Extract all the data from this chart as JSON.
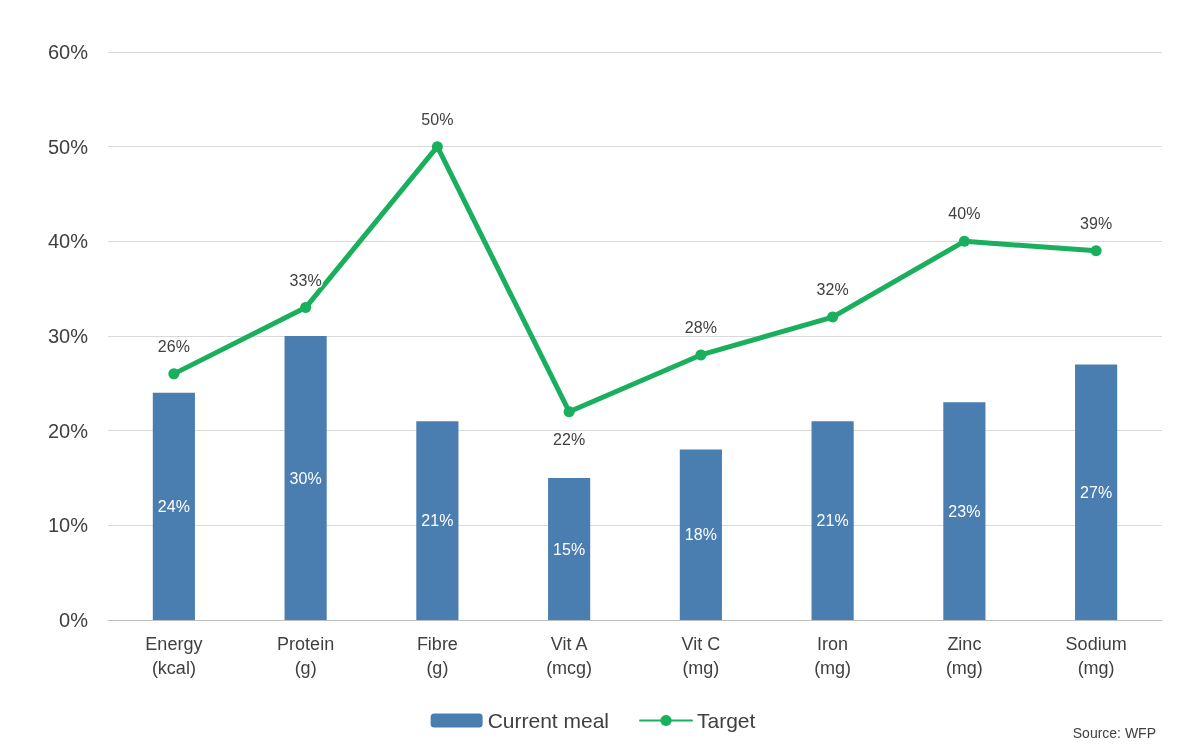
{
  "chart_data": {
    "type": "bar",
    "categories": [
      "Energy\n(kcal)",
      "Protein\n(g)",
      "Fibre\n(g)",
      "Vit A\n(mcg)",
      "Vit C\n(mg)",
      "Iron\n(mg)",
      "Zinc\n(mg)",
      "Sodium\n(mg)"
    ],
    "series": [
      {
        "name": "Current meal",
        "color": "#4a7eb0",
        "values": [
          24,
          30,
          21,
          15,
          18,
          21,
          23,
          27
        ],
        "value_labels": [
          "24%",
          "30%",
          "21%",
          "15%",
          "18%",
          "21%",
          "23%",
          "27%"
        ]
      },
      {
        "name": "Target",
        "type": "line",
        "color": "#1aaf5d",
        "values": [
          26,
          33,
          50,
          22,
          28,
          32,
          40,
          39
        ],
        "value_labels": [
          "26%",
          "33%",
          "50%",
          "22%",
          "28%",
          "32%",
          "40%",
          "39%"
        ]
      }
    ],
    "ylim": [
      0,
      60
    ],
    "yticks": [
      {
        "value": 0,
        "label": "0%"
      },
      {
        "value": 10,
        "label": "10%"
      },
      {
        "value": 20,
        "label": "20%"
      },
      {
        "value": 30,
        "label": "30%"
      },
      {
        "value": 40,
        "label": "40%"
      },
      {
        "value": 50,
        "label": "50%"
      },
      {
        "value": 60,
        "label": "60%"
      }
    ],
    "grid": "y",
    "legend": "bottom",
    "marker": "circle",
    "line_style": "solid",
    "annotations": [
      "Source: WFP"
    ]
  }
}
